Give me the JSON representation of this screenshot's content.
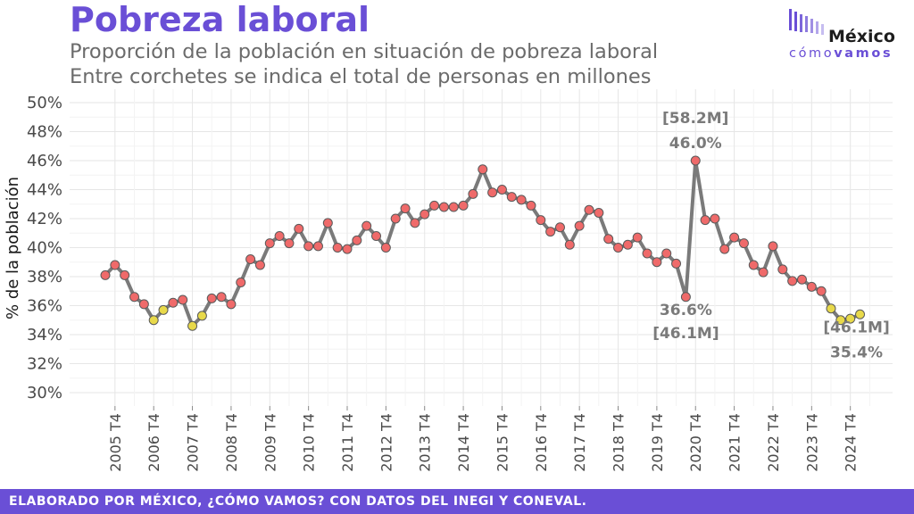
{
  "header": {
    "title": "Pobreza laboral",
    "subtitle_1": "Proporción de la población en situación de pobreza laboral",
    "subtitle_2": "Entre corchetes se indica el total de personas en millones"
  },
  "logo": {
    "name_top": "México",
    "name_bottom_light": "cómo",
    "name_bottom_bold": "vamos"
  },
  "footer": {
    "text": "ELABORADO POR MÉXICO, ¿CÓMO VAMOS? CON DATOS DEL INEGI Y CONEVAL."
  },
  "colors": {
    "brand": "#6a4fd6",
    "line": "#7a7a7a",
    "point_red": "#ef6a6a",
    "point_yellow": "#e8d94a"
  },
  "chart_data": {
    "type": "line",
    "title": "Pobreza laboral",
    "ylabel": "% de la población",
    "xlabel": "",
    "ylim": [
      30,
      50
    ],
    "yticks": [
      30,
      32,
      34,
      36,
      38,
      40,
      42,
      44,
      46,
      48,
      50
    ],
    "ytick_labels": [
      "30%",
      "32%",
      "34%",
      "36%",
      "38%",
      "40%",
      "42%",
      "44%",
      "46%",
      "48%",
      "50%"
    ],
    "xtick_labels": [
      "2005 T4",
      "2006 T4",
      "2007 T4",
      "2008 T4",
      "2009 T4",
      "2010 T4",
      "2011 T4",
      "2012 T4",
      "2013 T4",
      "2014 T4",
      "2015 T4",
      "2016 T4",
      "2017 T4",
      "2018 T4",
      "2019 T4",
      "2020 T4",
      "2021 T4",
      "2022 T4",
      "2023 T4",
      "2024 T4"
    ],
    "first_quarter_index": 1,
    "values": [
      38.1,
      38.8,
      38.1,
      36.6,
      36.1,
      35.0,
      35.7,
      36.2,
      36.4,
      34.6,
      35.3,
      36.5,
      36.6,
      36.1,
      37.6,
      39.2,
      38.8,
      40.3,
      40.8,
      40.3,
      41.3,
      40.1,
      40.1,
      41.7,
      40.0,
      39.9,
      40.5,
      41.5,
      40.8,
      40.0,
      42.0,
      42.7,
      41.7,
      42.3,
      42.9,
      42.8,
      42.8,
      42.9,
      43.7,
      45.4,
      43.8,
      44.0,
      43.5,
      43.3,
      42.9,
      41.9,
      41.1,
      41.4,
      40.2,
      41.5,
      42.6,
      42.4,
      40.6,
      40.0,
      40.2,
      40.7,
      39.6,
      39.0,
      39.6,
      38.9,
      36.6,
      46.0,
      41.9,
      42.0,
      39.9,
      40.7,
      40.3,
      38.8,
      38.3,
      40.1,
      38.5,
      37.7,
      37.8,
      37.3,
      37.0,
      35.8,
      35.0,
      35.1,
      35.4
    ],
    "yellow_indices": [
      5,
      6,
      9,
      10,
      75,
      76,
      77,
      78
    ],
    "annotations": [
      {
        "index": 60,
        "pct_label": "36.6%",
        "count_label": "[46.1M]",
        "placement": "below"
      },
      {
        "index": 61,
        "pct_label": "46.0%",
        "count_label": "[58.2M]",
        "placement": "above"
      },
      {
        "index": 78,
        "pct_label": "35.4%",
        "count_label": "[46.1M]",
        "placement": "below"
      }
    ],
    "grid": true,
    "legend": "none"
  }
}
